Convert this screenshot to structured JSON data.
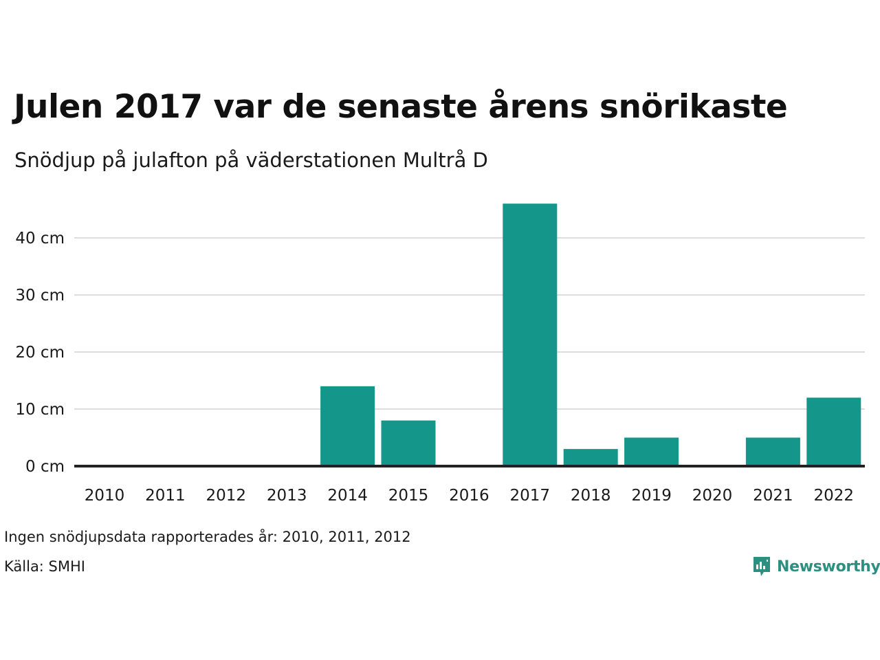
{
  "title": "Julen 2017 var de senaste årens snörikaste",
  "subtitle": "Snödjup på julafton på väderstationen Multrå D",
  "note": "Ingen snödjupsdata rapporterades år: 2010, 2011, 2012",
  "source": "Källa: SMHI",
  "logo": {
    "text": "Newsworthy",
    "icon": "bar-chart-bubble-icon",
    "color": "#2c8f80"
  },
  "colors": {
    "bar": "#14978a",
    "axis": "#222222",
    "grid": "#dddddd"
  },
  "chart_data": {
    "type": "bar",
    "categories": [
      "2010",
      "2011",
      "2012",
      "2013",
      "2014",
      "2015",
      "2016",
      "2017",
      "2018",
      "2019",
      "2020",
      "2021",
      "2022"
    ],
    "values": [
      null,
      null,
      null,
      0,
      14,
      8,
      0,
      46,
      3,
      5,
      0,
      5,
      12
    ],
    "unit": "cm",
    "ylim": [
      0,
      48
    ],
    "yticks": [
      0,
      10,
      20,
      30,
      40
    ],
    "ytick_labels": [
      "0 cm",
      "10 cm",
      "20 cm",
      "30 cm",
      "40 cm"
    ],
    "grid": true,
    "legend": "none",
    "xlabel": "",
    "ylabel": ""
  }
}
